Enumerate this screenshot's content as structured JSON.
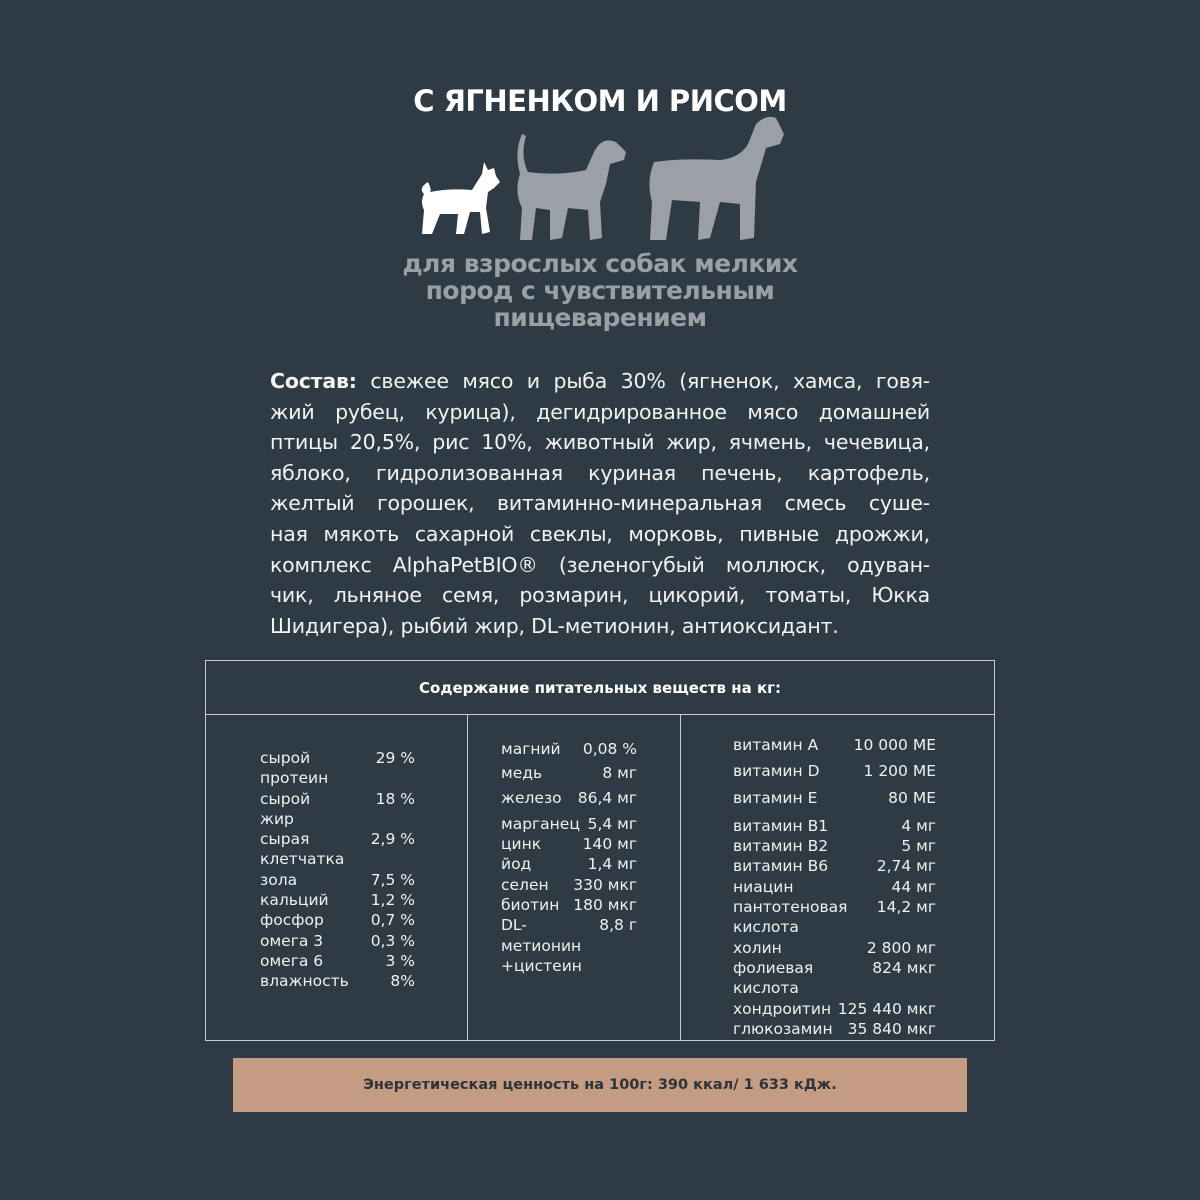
{
  "title": "С ЯГНЕНКОМ И РИСОМ",
  "icons": [
    "small-dog-icon",
    "medium-dog-icon",
    "large-dog-icon"
  ],
  "subtitle": [
    "для взрослых собак мелких",
    "пород с чувствительным",
    "пищеварением"
  ],
  "composition": {
    "label": "Состав:",
    "lines": [
      " свежее мясо и рыба 30% (ягненок, хамса, говя-",
      "жий рубец, курица), дегидрированное мясо домашней",
      "птицы 20,5%, рис 10%, животный жир, ячмень, чечевица,",
      "яблоко, гидролизованная куриная печень, картофель,",
      "желтый горошек, витаминно-минеральная смесь суше-",
      "ная мякоть сахарной свеклы, морковь, пивные дрожжи,",
      "комплекс AlphaPetBIO® (зеленогубый моллюск, одуван-",
      "чик, льняное семя, розмарин, цикорий, томаты, Юкка",
      "Шидигера), рыбий жир, DL-метионин, антиоксидант."
    ]
  },
  "table": {
    "header": "Содержание питательных веществ на кг:",
    "col1": [
      {
        "name": "сырой\nпротеин",
        "value": "29 %"
      },
      {
        "name": "сырой\nжир",
        "value": "18 %"
      },
      {
        "name": "сырая\nклетчатка",
        "value": "2,9 %"
      },
      {
        "name": "зола",
        "value": "7,5 %"
      },
      {
        "name": "кальций",
        "value": "1,2 %"
      },
      {
        "name": "фосфор",
        "value": "0,7 %"
      },
      {
        "name": "омега 3",
        "value": "0,3 %"
      },
      {
        "name": "омега 6",
        "value": "3 %"
      },
      {
        "name": "влажность",
        "value": "8%"
      }
    ],
    "col2": [
      {
        "name": "магний",
        "value": "0,08 %"
      },
      {
        "name": "медь",
        "value": "8 мг"
      },
      {
        "name": "железо",
        "value": "86,4 мг"
      },
      {
        "name": "марганец",
        "value": "5,4 мг"
      },
      {
        "name": "цинк",
        "value": "140 мг"
      },
      {
        "name": "йод",
        "value": "1,4 мг"
      },
      {
        "name": "селен",
        "value": "330 мкг"
      },
      {
        "name": "биотин",
        "value": "180 мкг"
      },
      {
        "name": "DL-метионин\n+цистеин",
        "value": "8,8 г"
      }
    ],
    "col3": [
      {
        "name": "витамин А",
        "value": "10 000 МЕ"
      },
      {
        "name": "витамин D",
        "value": "1 200 МЕ"
      },
      {
        "name": "витамин Е",
        "value": "80 МЕ"
      },
      {
        "name": "витамин В1",
        "value": "4 мг"
      },
      {
        "name": "витамин В2",
        "value": "5 мг"
      },
      {
        "name": "витамин В6",
        "value": "2,74 мг"
      },
      {
        "name": "ниацин",
        "value": "44 мг"
      },
      {
        "name": "пантотеновая\nкислота",
        "value": "14,2 мг"
      },
      {
        "name": "холин",
        "value": "2 800 мг"
      },
      {
        "name": "фолиевая\nкислота",
        "value": "824 мкг"
      },
      {
        "name": "хондроитин",
        "value": "125 440 мкг"
      },
      {
        "name": "глюкозамин",
        "value": "35 840 мкг"
      }
    ]
  },
  "energy": "Энергетическая ценность на 100г: 390 ккал/ 1 633 кДж.",
  "colors": {
    "background": "#2e3a44",
    "banner": "#c39c83",
    "subtitle": "#9aa0a5",
    "dog_highlight": "#ffffff",
    "dog_muted": "#9aa0a5"
  }
}
